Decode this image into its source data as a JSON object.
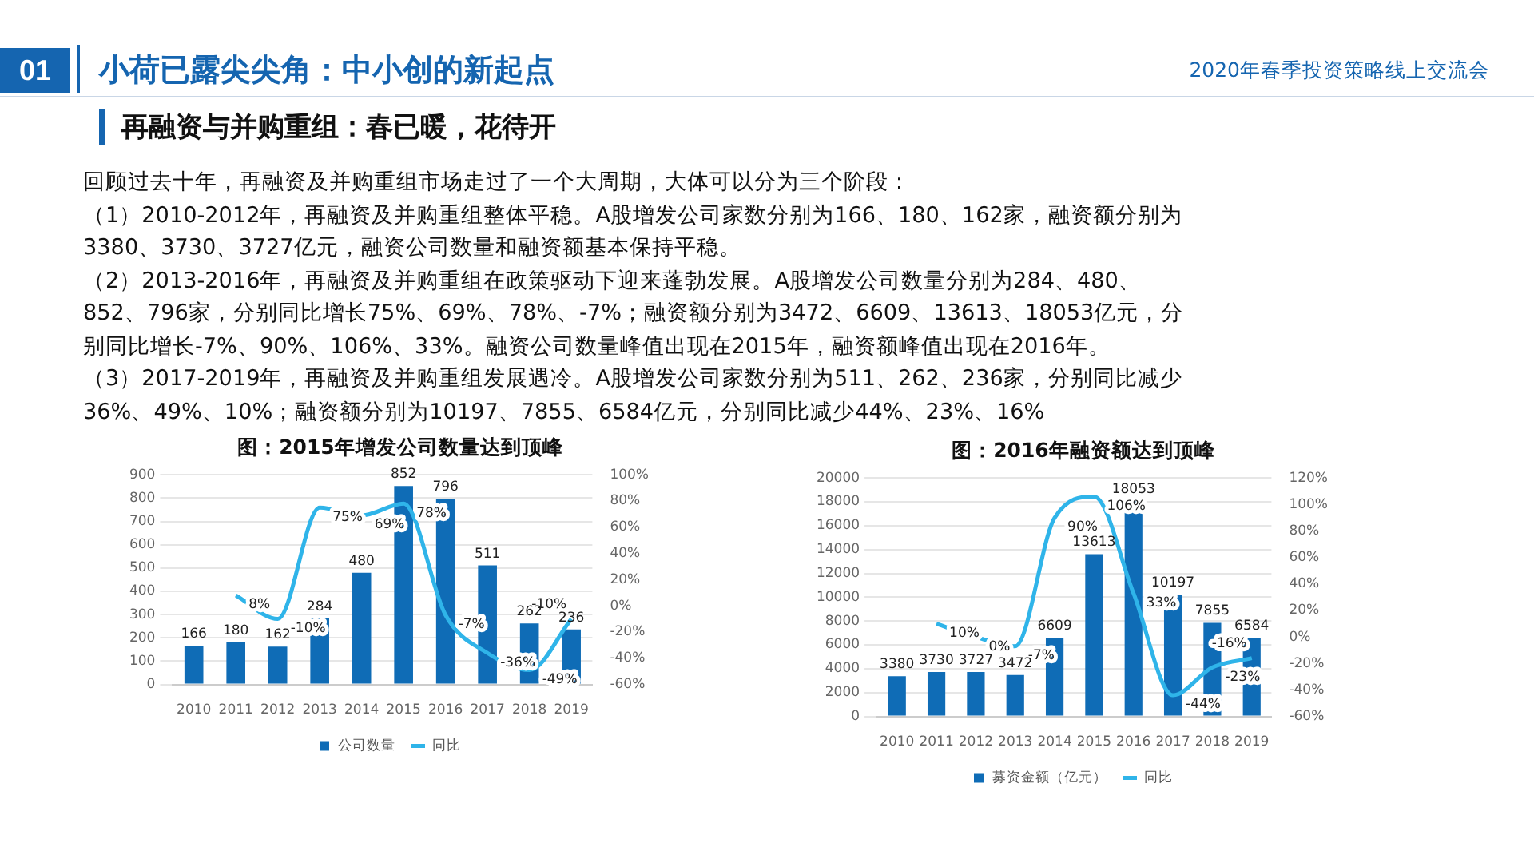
{
  "chart_data": [
    {
      "type": "other",
      "title": "小荷已露尖尖角：中小创的新起点",
      "subtitle": "再融资与并购重组：春已暖，花待开",
      "annotations": [
        "2020年春季投资策略线上交流会",
        "01",
        "回顾过去十年，再融资及并购重组市场走过了一个大周期，大体可以分为三个阶段：",
        "（1）2010-2012年，再融资及并购重组整体平稳。A股增发公司家数分别为166、180、162家，融资额分别为3380、3730、3727亿元，融资公司数量和融资额基本保持平稳。",
        "（2）2013-2016年，再融资及并购重组在政策驱动下迎来蓬勃发展。A股增发公司数量分别为284、480、852、796家，分别同比增长75%、69%、78%、-7%；融资额分别为3472、6609、13613、18053亿元，分别同比增长-7%、90%、106%、33%。融资公司数量峰值出现在2015年，融资额峰值出现在2016年。",
        "（3）2017-2019年，再融资及并购重组发展遇冷。A股增发公司家数分别为511、262、236家，分别同比减少36%、49%、10%；融资额分别为10197、7855、6584亿元，分别同比减少44%、23%、16%"
      ]
    },
    {
      "type": "bar",
      "title": "图：2015年增发公司数量达到顶峰",
      "categories": [
        "2010",
        "2011",
        "2012",
        "2013",
        "2014",
        "2015",
        "2016",
        "2017",
        "2018",
        "2019"
      ],
      "series": [
        {
          "name": "公司数量",
          "color": "#0f6cb6",
          "values": [
            166,
            180,
            162,
            284,
            480,
            852,
            796,
            511,
            262,
            236
          ],
          "value_labels": [
            "166",
            "180",
            "162",
            "284",
            "480",
            "852",
            "796",
            "511",
            "262",
            "236"
          ]
        },
        {
          "name": "同比",
          "type": "line",
          "axis": "y2",
          "color": "#2fb4e9",
          "values": [
            null,
            8,
            -10,
            75,
            69,
            78,
            -7,
            -36,
            -49,
            -10
          ],
          "value_labels": [
            null,
            "8%",
            "-10%",
            "75%",
            "69%",
            "78%",
            "-7%",
            "-36%",
            "-49%",
            "-10%"
          ]
        }
      ],
      "ylim": [
        0,
        900
      ],
      "yticks": [
        0,
        100,
        200,
        300,
        400,
        500,
        600,
        700,
        800,
        900
      ],
      "y2lim": [
        -60,
        100
      ],
      "y2ticks": [
        {
          "value": -60,
          "label": "-60%"
        },
        {
          "value": -40,
          "label": "-40%"
        },
        {
          "value": -20,
          "label": "-20%"
        },
        {
          "value": 0,
          "label": "0%"
        },
        {
          "value": 20,
          "label": "20%"
        },
        {
          "value": 40,
          "label": "40%"
        },
        {
          "value": 60,
          "label": "60%"
        },
        {
          "value": 80,
          "label": "80%"
        },
        {
          "value": 100,
          "label": "100%"
        }
      ],
      "grid": "y",
      "legend": "bottom",
      "marker": "none"
    },
    {
      "type": "bar",
      "title": "图：2016年融资额达到顶峰",
      "categories": [
        "2010",
        "2011",
        "2012",
        "2013",
        "2014",
        "2015",
        "2016",
        "2017",
        "2018",
        "2019"
      ],
      "series": [
        {
          "name": "募资金额（亿元）",
          "color": "#0f6cb6",
          "values": [
            3380,
            3730,
            3727,
            3472,
            6609,
            13613,
            18053,
            10197,
            7855,
            6584
          ],
          "value_labels": [
            "3380",
            "3730",
            "3727",
            "3472",
            "6609",
            "13613",
            "18053",
            "10197",
            "7855",
            "6584"
          ]
        },
        {
          "name": "同比",
          "type": "line",
          "axis": "y2",
          "color": "#2fb4e9",
          "values": [
            null,
            10,
            0,
            -7,
            90,
            106,
            33,
            -44,
            -23,
            -16
          ],
          "value_labels": [
            null,
            "10%",
            "0%",
            "-7%",
            "90%",
            "106%",
            "33%",
            "-44%",
            "-23%",
            "-16%"
          ]
        }
      ],
      "ylim": [
        0,
        20000
      ],
      "yticks": [
        0,
        2000,
        4000,
        6000,
        8000,
        10000,
        12000,
        14000,
        16000,
        18000,
        20000
      ],
      "y2lim": [
        -60,
        120
      ],
      "y2ticks": [
        {
          "value": -60,
          "label": "-60%"
        },
        {
          "value": -40,
          "label": "-40%"
        },
        {
          "value": -20,
          "label": "-20%"
        },
        {
          "value": 0,
          "label": "0%"
        },
        {
          "value": 20,
          "label": "20%"
        },
        {
          "value": 40,
          "label": "40%"
        },
        {
          "value": 60,
          "label": "60%"
        },
        {
          "value": 80,
          "label": "80%"
        },
        {
          "value": 100,
          "label": "100%"
        },
        {
          "value": 120,
          "label": "120%"
        }
      ],
      "grid": "y",
      "legend": "bottom",
      "marker": "none"
    }
  ]
}
